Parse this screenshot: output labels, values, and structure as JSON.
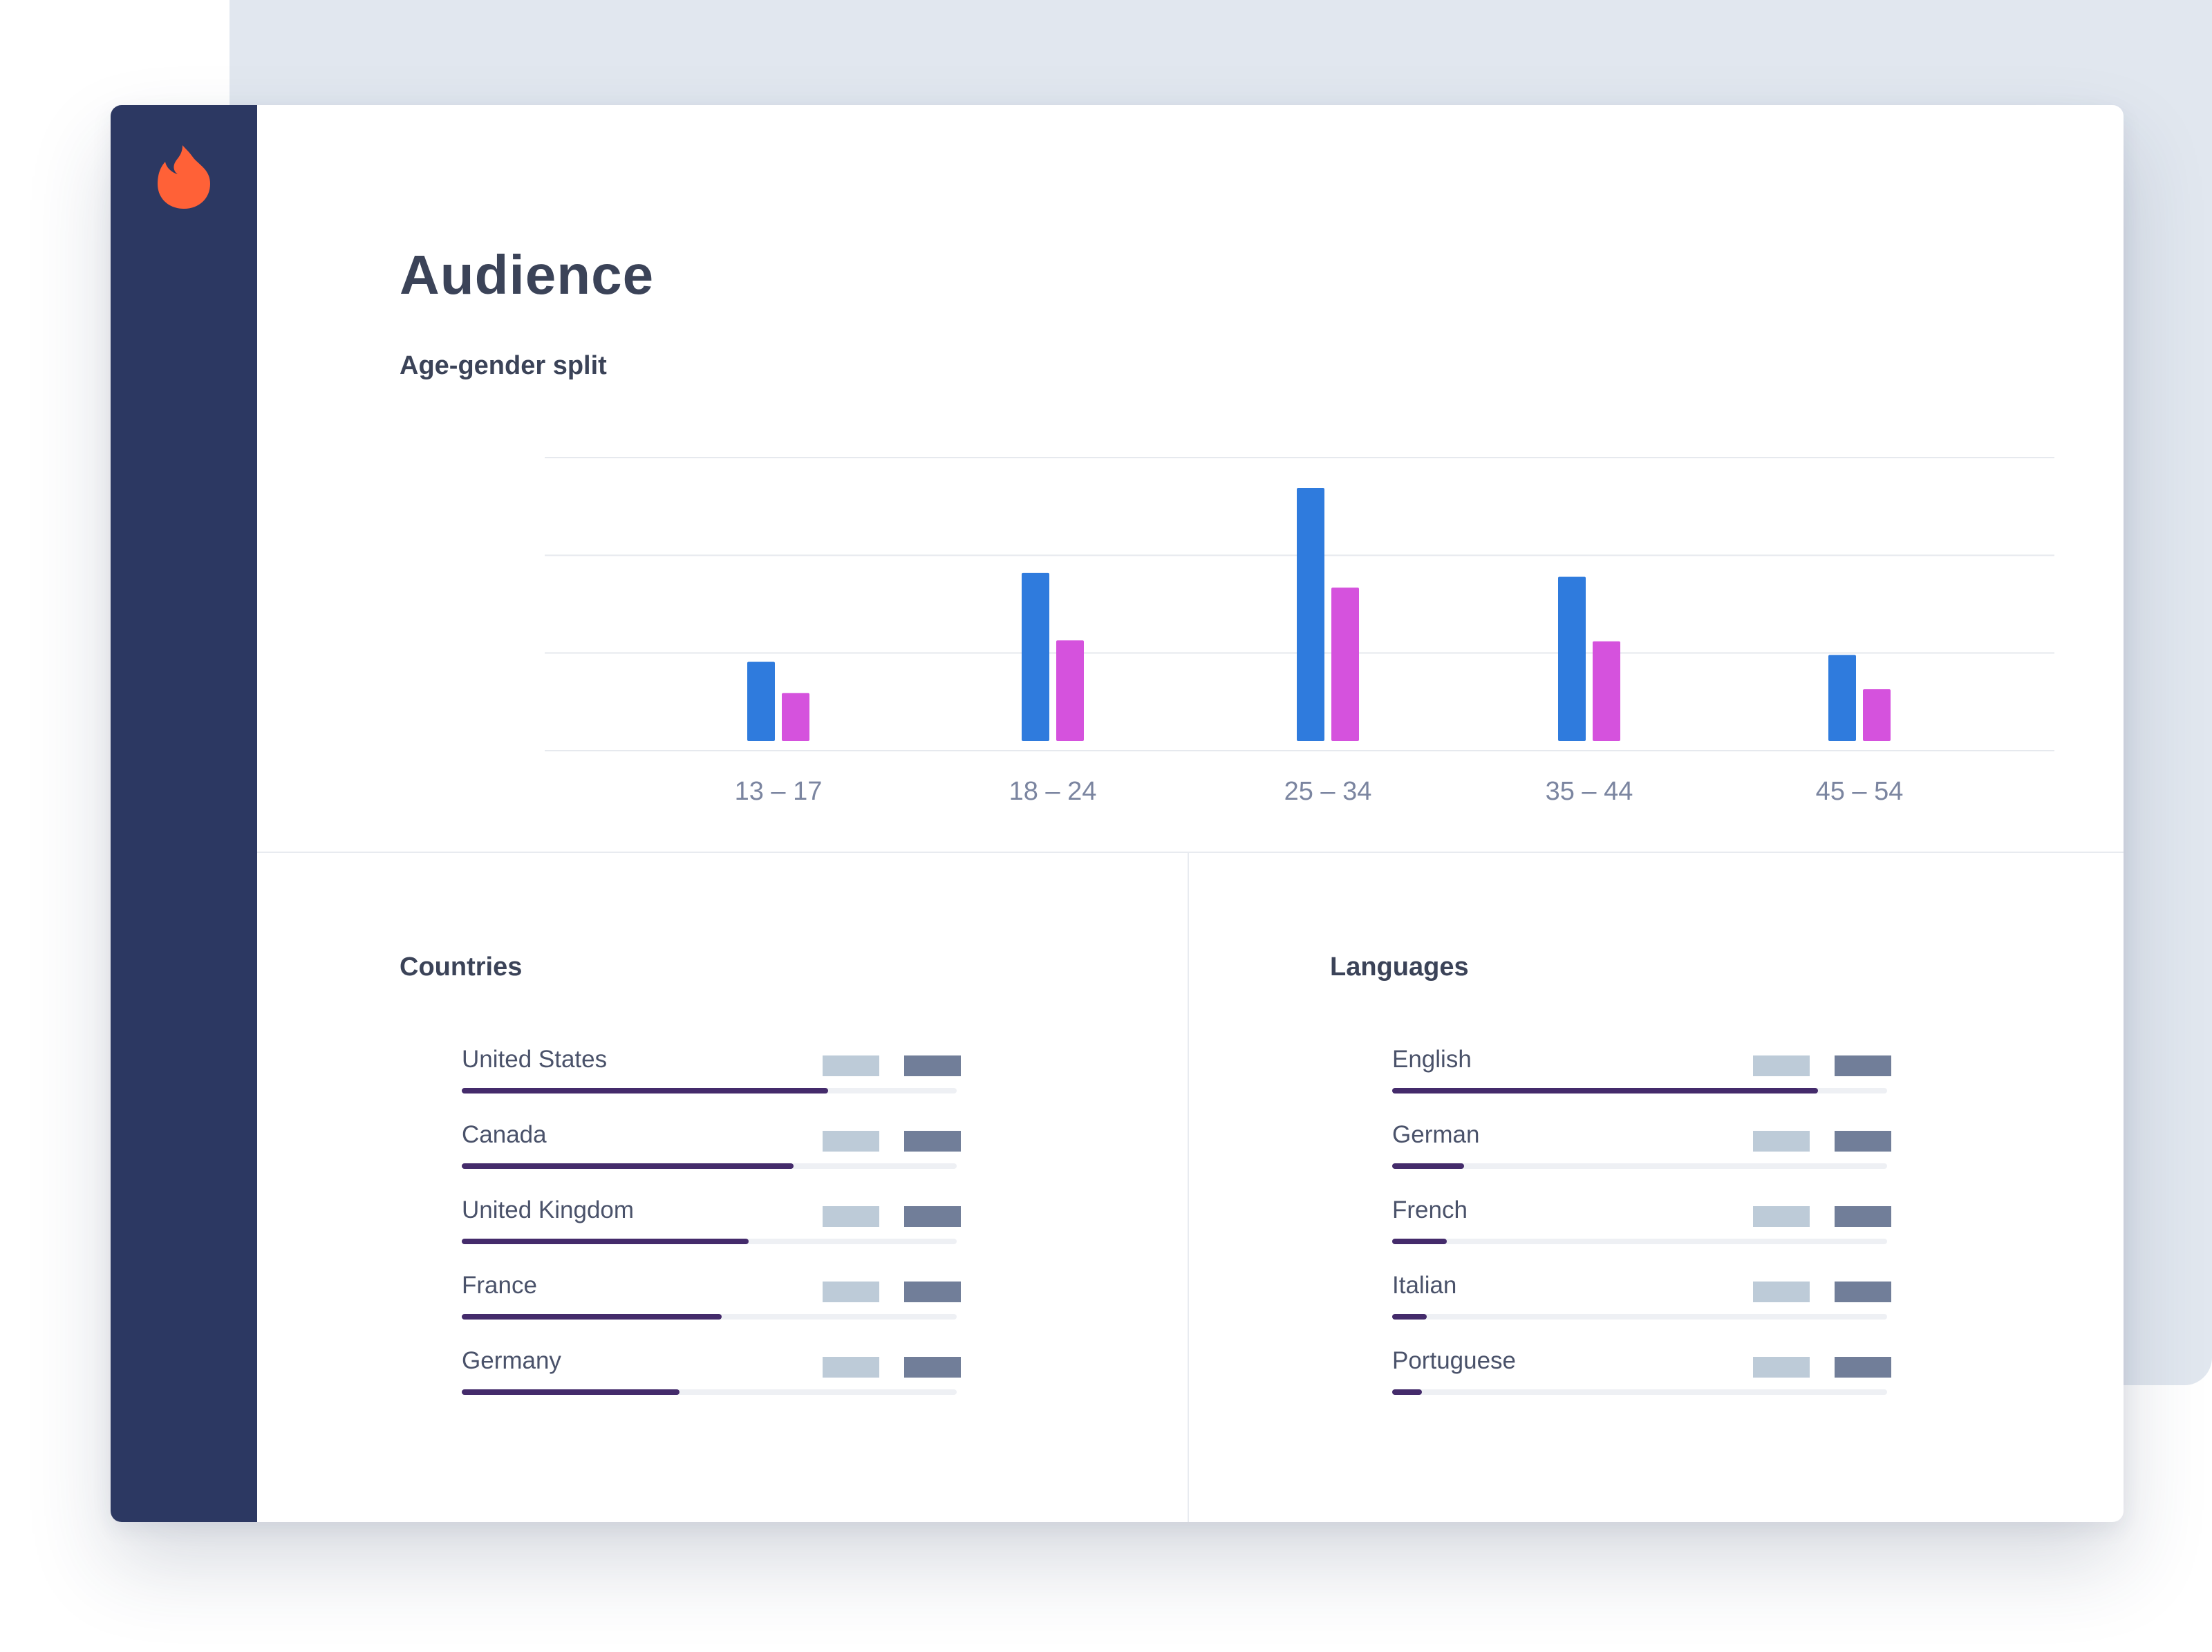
{
  "app": {
    "logo_icon": "flame-icon",
    "accent_color": "#ff6137",
    "sidebar_color": "#2c3862"
  },
  "page": {
    "title": "Audience"
  },
  "age_gender": {
    "title": "Age-gender split",
    "series_colors": [
      "#2f7bdd",
      "#d552dd"
    ]
  },
  "chart_data": {
    "type": "bar",
    "categories": [
      "13 – 17",
      "18 – 24",
      "25 – 34",
      "35 – 44",
      "45 – 54"
    ],
    "series": [
      {
        "values": [
          81,
          172,
          259,
          168,
          88
        ]
      },
      {
        "values": [
          49,
          103,
          157,
          102,
          53
        ]
      }
    ],
    "ylim": [
      0,
      300
    ],
    "gridlines": 3,
    "legend": "none"
  },
  "countries": {
    "title": "Countries",
    "items": [
      {
        "label": "United States",
        "share": 0.74
      },
      {
        "label": "Canada",
        "share": 0.67
      },
      {
        "label": "United Kingdom",
        "share": 0.58
      },
      {
        "label": "France",
        "share": 0.525
      },
      {
        "label": "Germany",
        "share": 0.44
      }
    ]
  },
  "languages": {
    "title": "Languages",
    "items": [
      {
        "label": "English",
        "share": 0.86
      },
      {
        "label": "German",
        "share": 0.145
      },
      {
        "label": "French",
        "share": 0.11
      },
      {
        "label": "Italian",
        "share": 0.07
      },
      {
        "label": "Portuguese",
        "share": 0.06
      }
    ]
  }
}
